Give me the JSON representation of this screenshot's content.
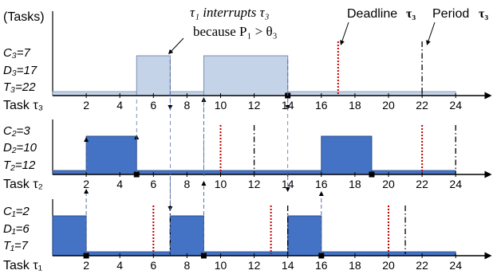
{
  "header": {
    "y_axis_label": "(Tasks)",
    "annotation_line1": "τ₁ interrupts τ₃",
    "annotation_line2": "because P₁ > θ₃",
    "deadline_label": "Deadline",
    "deadline_symbol": "τ₃",
    "period_label": "Period",
    "period_symbol": "τ₃"
  },
  "x_ticks": [
    2,
    4,
    6,
    8,
    10,
    12,
    14,
    16,
    18,
    20,
    22,
    24
  ],
  "tasks": [
    {
      "id": "tau3",
      "axis_label": "Task τ₃",
      "params": [
        "C₃=7",
        "D₃=17",
        "T₃=22"
      ],
      "fill_color": "#c5d3e8",
      "edge_color": "#7a8fb4",
      "executions": [
        [
          5,
          7
        ],
        [
          9,
          14
        ]
      ],
      "deadlines": [
        17
      ],
      "periods": [
        22
      ],
      "markers": [
        14
      ]
    },
    {
      "id": "tau2",
      "axis_label": "Task τ₂",
      "params": [
        "C₂=3",
        "D₂=10",
        "T₂=12"
      ],
      "fill_color": "#4472c4",
      "edge_color": "#2a4f8f",
      "executions": [
        [
          2,
          5
        ],
        [
          16,
          19
        ]
      ],
      "deadlines": [
        10,
        22
      ],
      "periods": [
        12,
        24
      ],
      "markers": [
        5,
        19
      ]
    },
    {
      "id": "tau1",
      "axis_label": "Task τ₁",
      "params": [
        "C₁=2",
        "D₁=6",
        "T₁=7"
      ],
      "fill_color": "#4472c4",
      "edge_color": "#2a4f8f",
      "executions": [
        [
          0,
          2
        ],
        [
          7,
          9
        ],
        [
          14,
          16
        ]
      ],
      "deadlines": [
        6,
        13,
        20
      ],
      "periods": [
        7,
        14,
        21
      ],
      "markers": [
        2,
        9,
        16
      ]
    }
  ],
  "colors": {
    "deadline": "#c00000",
    "period": "#000000",
    "connector": "#5b6fa8",
    "axis": "#000000"
  }
}
